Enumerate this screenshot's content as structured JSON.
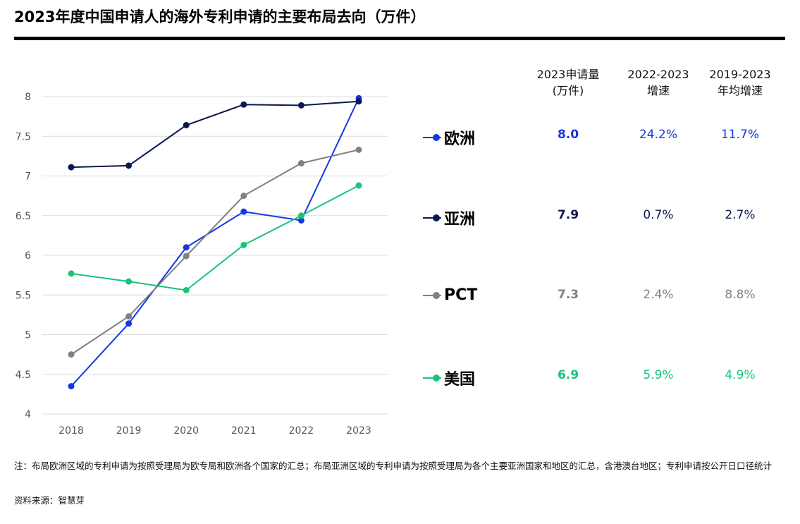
{
  "title": "2023年度中国申请人的海外专利申请的主要布局去向（万件）",
  "table": {
    "headers": [
      [
        "2023申请量",
        "(万件)"
      ],
      [
        "2022-2023",
        "增速"
      ],
      [
        "2019-2023",
        "年均增速"
      ]
    ],
    "rows": [
      {
        "name": "欧洲",
        "volume": "8.0",
        "growth": "24.2%",
        "cagr": "11.7%",
        "color": "#1436e6",
        "bold_volume": true
      },
      {
        "name": "亚洲",
        "volume": "7.9",
        "growth": "0.7%",
        "cagr": "2.7%",
        "color": "#0b1850",
        "bold_volume": true
      },
      {
        "name": "PCT",
        "volume": "7.3",
        "growth": "2.4%",
        "cagr": "8.8%",
        "color": "#808080",
        "bold_volume": true
      },
      {
        "name": "美国",
        "volume": "6.9",
        "growth": "5.9%",
        "cagr": "4.9%",
        "color": "#17c47a",
        "bold_volume": true
      }
    ]
  },
  "notes": {
    "note": "注：布局欧洲区域的专利申请为按照受理局为欧专局和欧洲各个国家的汇总；布局亚洲区域的专利申请为按照受理局为各个主要亚洲国家和地区的汇总，含港澳台地区；专利申请按公开日口径统计",
    "source": "资料来源：智慧芽"
  },
  "chart_data": {
    "type": "line",
    "x": [
      "2018",
      "2019",
      "2020",
      "2021",
      "2022",
      "2023"
    ],
    "ylim": [
      4,
      8
    ],
    "yticks": [
      "4",
      "4.5",
      "5",
      "5.5",
      "6",
      "6.5",
      "7",
      "7.5",
      "8"
    ],
    "grid": true,
    "series": [
      {
        "name": "欧洲",
        "color": "#1436e6",
        "values": [
          4.35,
          5.14,
          6.1,
          6.55,
          6.44,
          7.98
        ]
      },
      {
        "name": "亚洲",
        "color": "#0b1850",
        "values": [
          7.11,
          7.13,
          7.64,
          7.9,
          7.89,
          7.94
        ]
      },
      {
        "name": "PCT",
        "color": "#808080",
        "values": [
          4.75,
          5.23,
          5.99,
          6.75,
          7.16,
          7.33
        ]
      },
      {
        "name": "美国",
        "color": "#17c47a",
        "values": [
          5.77,
          5.67,
          5.56,
          6.13,
          6.5,
          6.88
        ]
      }
    ]
  }
}
